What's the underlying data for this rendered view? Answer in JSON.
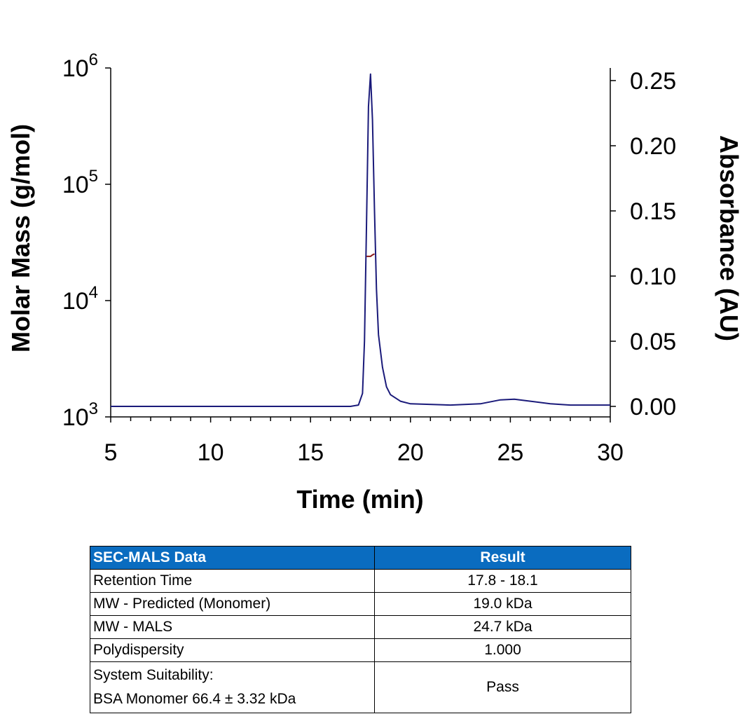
{
  "chart_data": {
    "type": "line",
    "xlabel": "Time (min)",
    "ylabel_left": "Molar Mass (g/mol)",
    "ylabel_right": "Absorbance (AU)",
    "xlim": [
      5,
      30
    ],
    "x_ticks": [
      5,
      10,
      15,
      20,
      25,
      30
    ],
    "ylim_left": [
      1000,
      1000000
    ],
    "left_scale": "log",
    "left_ticks": [
      {
        "base": "10",
        "exp": "3",
        "value": 1000
      },
      {
        "base": "10",
        "exp": "4",
        "value": 10000
      },
      {
        "base": "10",
        "exp": "5",
        "value": 100000
      },
      {
        "base": "10",
        "exp": "6",
        "value": 1000000
      }
    ],
    "ylim_right": [
      0,
      0.25
    ],
    "right_ticks": [
      "0.00",
      "0.05",
      "0.10",
      "0.15",
      "0.20",
      "0.25"
    ],
    "grid": false,
    "series": [
      {
        "axis": "right",
        "color": "#1a1a7a",
        "points": [
          [
            5,
            0.0
          ],
          [
            17.0,
            0.0
          ],
          [
            17.4,
            0.001
          ],
          [
            17.6,
            0.01
          ],
          [
            17.7,
            0.05
          ],
          [
            17.8,
            0.14
          ],
          [
            17.9,
            0.23
          ],
          [
            18.0,
            0.255
          ],
          [
            18.1,
            0.22
          ],
          [
            18.2,
            0.15
          ],
          [
            18.3,
            0.09
          ],
          [
            18.4,
            0.055
          ],
          [
            18.6,
            0.03
          ],
          [
            18.8,
            0.015
          ],
          [
            19.0,
            0.009
          ],
          [
            19.5,
            0.004
          ],
          [
            20,
            0.002
          ],
          [
            22,
            0.001
          ],
          [
            23.5,
            0.002
          ],
          [
            24.5,
            0.005
          ],
          [
            25.2,
            0.0055
          ],
          [
            26,
            0.004
          ],
          [
            27,
            0.002
          ],
          [
            28,
            0.001
          ],
          [
            30,
            0.001
          ]
        ]
      },
      {
        "axis": "left",
        "color": "#8b1a1a",
        "points": [
          [
            17.8,
            24000
          ],
          [
            18.0,
            24000
          ],
          [
            18.1,
            24700
          ],
          [
            18.2,
            25200
          ]
        ]
      }
    ]
  },
  "table": {
    "headers": [
      "SEC-MALS Data",
      "Result"
    ],
    "rows": [
      {
        "label": "Retention Time",
        "value": "17.8 - 18.1"
      },
      {
        "label": "MW - Predicted (Monomer)",
        "value": "19.0 kDa"
      },
      {
        "label": "MW - MALS",
        "value": "24.7 kDa"
      },
      {
        "label": "Polydispersity",
        "value": "1.000"
      }
    ],
    "last_row": {
      "label_line1": "System Suitability:",
      "label_line2": "BSA Monomer 66.4 ± 3.32 kDa",
      "value": "Pass"
    },
    "header_color": "#0a6cc0"
  }
}
